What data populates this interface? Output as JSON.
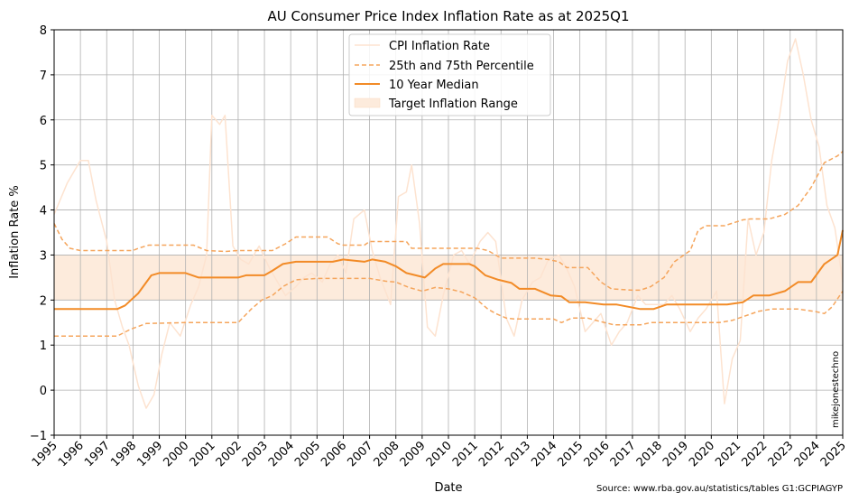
{
  "chart_data": {
    "type": "line",
    "title": "AU Consumer Price Index Inflation Rate as at 2025Q1",
    "xlabel": "Date",
    "ylabel": "Inflation Rate %",
    "xlim": [
      1995,
      2025
    ],
    "ylim": [
      -1,
      8
    ],
    "x_ticks": [
      "1995",
      "1996",
      "1997",
      "1998",
      "1999",
      "2000",
      "2001",
      "2002",
      "2003",
      "2004",
      "2005",
      "2006",
      "2007",
      "2008",
      "2009",
      "2010",
      "2011",
      "2012",
      "2013",
      "2014",
      "2015",
      "2016",
      "2017",
      "2018",
      "2019",
      "2020",
      "2021",
      "2022",
      "2023",
      "2024",
      "2025"
    ],
    "y_ticks": [
      "−1",
      "0",
      "1",
      "2",
      "3",
      "4",
      "5",
      "6",
      "7",
      "8"
    ],
    "grid": true,
    "legend": {
      "placement": "top-center",
      "entries": [
        "CPI Inflation Rate",
        "25th and 75th Percentile",
        "10 Year Median",
        "Target Inflation Range"
      ]
    },
    "target_range": [
      2,
      3
    ],
    "annotations": {
      "watermark": "mikejonestechno",
      "source": "Source: www.rba.gov.au/statistics/tables G1:GCPIAGYP"
    },
    "colors": {
      "cpi": "#fde3d0",
      "percentile": "#f5a55c",
      "median": "#f28b27",
      "target_fill": "#fdebdc",
      "grid": "#b0b0b0"
    },
    "series": [
      {
        "name": "CPI Inflation Rate",
        "x": [
          1995,
          1995.5,
          1996,
          1996.3,
          1996.6,
          1997,
          1997.3,
          1997.6,
          1997.85,
          1998.2,
          1998.5,
          1998.8,
          1999.1,
          1999.4,
          1999.8,
          2000.2,
          2000.5,
          2000.8,
          2001.0,
          2001.3,
          2001.5,
          2001.8,
          2002.1,
          2002.4,
          2002.8,
          2003.2,
          2003.5,
          2003.8,
          2004.2,
          2004.5,
          2004.8,
          2005.2,
          2005.5,
          2005.8,
          2006.1,
          2006.4,
          2006.8,
          2007.1,
          2007.4,
          2007.8,
          2008.1,
          2008.4,
          2008.6,
          2008.9,
          2009.2,
          2009.5,
          2009.8,
          2010.2,
          2010.5,
          2010.8,
          2011.2,
          2011.5,
          2011.8,
          2012.2,
          2012.5,
          2012.8,
          2013.2,
          2013.5,
          2013.8,
          2014.2,
          2014.5,
          2014.8,
          2015.2,
          2015.5,
          2015.8,
          2016.2,
          2016.5,
          2016.8,
          2017.2,
          2017.5,
          2017.8,
          2018.2,
          2018.5,
          2018.8,
          2019.2,
          2019.5,
          2019.8,
          2020.2,
          2020.5,
          2020.8,
          2021.1,
          2021.4,
          2021.7,
          2022.0,
          2022.3,
          2022.6,
          2022.9,
          2023.2,
          2023.5,
          2023.8,
          2024.1,
          2024.4,
          2024.7,
          2025
        ],
        "values": [
          3.9,
          4.6,
          5.1,
          5.1,
          4.2,
          3.3,
          2.0,
          1.4,
          1.0,
          0.1,
          -0.4,
          -0.1,
          0.8,
          1.5,
          1.2,
          1.9,
          2.3,
          3.0,
          6.1,
          5.9,
          6.1,
          3.2,
          2.9,
          2.8,
          3.2,
          2.7,
          2.4,
          2.1,
          2.3,
          2.5,
          2.6,
          2.4,
          2.8,
          3.0,
          2.6,
          3.8,
          4.0,
          3.1,
          2.5,
          1.9,
          4.3,
          4.4,
          5.0,
          3.7,
          1.4,
          1.2,
          2.1,
          3.0,
          3.1,
          2.8,
          3.3,
          3.5,
          3.3,
          1.6,
          1.2,
          2.0,
          2.4,
          2.5,
          2.9,
          3.0,
          2.7,
          2.3,
          1.3,
          1.5,
          1.7,
          1.0,
          1.3,
          1.5,
          2.1,
          1.9,
          1.9,
          1.9,
          2.1,
          1.8,
          1.3,
          1.6,
          1.8,
          2.2,
          -0.3,
          0.7,
          1.1,
          3.8,
          3.0,
          3.5,
          5.1,
          6.1,
          7.3,
          7.8,
          7.0,
          6.0,
          5.4,
          4.1,
          3.6,
          2.4
        ]
      },
      {
        "name": "75th Percentile",
        "x": [
          1995,
          1995.3,
          1995.6,
          1996,
          1997,
          1998,
          1998.2,
          1998.6,
          1999.4,
          2000.3,
          2000.8,
          2001.5,
          2002,
          2002.6,
          2003.3,
          2003.8,
          2004.2,
          2005.4,
          2005.8,
          2006.0,
          2006.8,
          2007.0,
          2008.4,
          2008.6,
          2011.1,
          2011.5,
          2012.0,
          2013.3,
          2013.8,
          2014.2,
          2014.5,
          2015.3,
          2015.8,
          2016.2,
          2017.0,
          2017.3,
          2017.7,
          2018.2,
          2018.6,
          2019.2,
          2019.5,
          2019.8,
          2020.5,
          2021.2,
          2021.5,
          2022.2,
          2022.8,
          2023.3,
          2023.8,
          2024.3,
          2024.8,
          2025
        ],
        "values": [
          3.7,
          3.35,
          3.15,
          3.1,
          3.1,
          3.1,
          3.15,
          3.22,
          3.22,
          3.22,
          3.1,
          3.08,
          3.1,
          3.1,
          3.1,
          3.25,
          3.4,
          3.4,
          3.25,
          3.22,
          3.22,
          3.3,
          3.3,
          3.15,
          3.15,
          3.1,
          2.93,
          2.93,
          2.9,
          2.85,
          2.72,
          2.72,
          2.4,
          2.25,
          2.22,
          2.22,
          2.3,
          2.5,
          2.85,
          3.1,
          3.55,
          3.65,
          3.65,
          3.78,
          3.8,
          3.8,
          3.9,
          4.1,
          4.5,
          5.05,
          5.2,
          5.3
        ]
      },
      {
        "name": "25th Percentile",
        "x": [
          1995,
          1997.4,
          1997.9,
          1998.5,
          2000,
          2001,
          2002,
          2002.5,
          2002.9,
          2003.3,
          2003.7,
          2004.2,
          2005,
          2006,
          2006.5,
          2007,
          2007.6,
          2008.0,
          2008.5,
          2009.0,
          2009.5,
          2010.0,
          2010.5,
          2011.0,
          2011.5,
          2011.8,
          2012.2,
          2012.5,
          2013.0,
          2014.0,
          2014.3,
          2014.7,
          2015.3,
          2015.8,
          2016.3,
          2017.3,
          2017.7,
          2018.2,
          2019.2,
          2020.3,
          2020.8,
          2021.3,
          2021.8,
          2022.3,
          2023.3,
          2024.0,
          2024.3,
          2024.6,
          2025
        ],
        "values": [
          1.2,
          1.2,
          1.35,
          1.48,
          1.5,
          1.5,
          1.5,
          1.8,
          2.0,
          2.1,
          2.3,
          2.45,
          2.48,
          2.48,
          2.48,
          2.48,
          2.42,
          2.4,
          2.28,
          2.2,
          2.28,
          2.25,
          2.18,
          2.05,
          1.8,
          1.7,
          1.6,
          1.58,
          1.58,
          1.58,
          1.5,
          1.6,
          1.6,
          1.52,
          1.45,
          1.45,
          1.5,
          1.5,
          1.5,
          1.5,
          1.55,
          1.65,
          1.75,
          1.8,
          1.8,
          1.74,
          1.7,
          1.85,
          2.2
        ]
      },
      {
        "name": "10 Year Median",
        "x": [
          1995,
          1997.4,
          1997.7,
          1998.2,
          1998.7,
          1999,
          2000,
          2000.5,
          2002,
          2002.3,
          2003,
          2003.3,
          2003.7,
          2004.2,
          2005.6,
          2006.0,
          2006.8,
          2007.1,
          2007.6,
          2008.0,
          2008.4,
          2009.1,
          2009.5,
          2009.8,
          2010.8,
          2011.0,
          2011.4,
          2011.9,
          2012.4,
          2012.7,
          2013.3,
          2013.9,
          2014.3,
          2014.6,
          2015.2,
          2015.9,
          2016.4,
          2017.3,
          2017.8,
          2018.3,
          2020.6,
          2021.2,
          2021.6,
          2022.2,
          2022.8,
          2023.3,
          2023.8,
          2024.3,
          2024.8,
          2025
        ],
        "values": [
          1.8,
          1.8,
          1.88,
          2.15,
          2.55,
          2.6,
          2.6,
          2.5,
          2.5,
          2.55,
          2.55,
          2.65,
          2.8,
          2.85,
          2.85,
          2.9,
          2.85,
          2.9,
          2.85,
          2.75,
          2.6,
          2.5,
          2.7,
          2.8,
          2.8,
          2.75,
          2.55,
          2.45,
          2.38,
          2.25,
          2.25,
          2.1,
          2.08,
          1.95,
          1.95,
          1.9,
          1.9,
          1.8,
          1.8,
          1.9,
          1.9,
          1.95,
          2.1,
          2.1,
          2.2,
          2.4,
          2.4,
          2.8,
          3.0,
          3.55
        ]
      }
    ]
  }
}
